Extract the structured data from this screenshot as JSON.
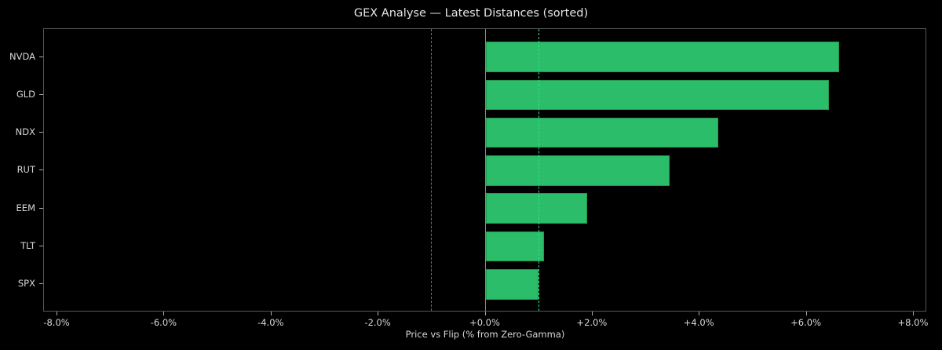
{
  "chart_data": {
    "type": "bar",
    "orientation": "horizontal",
    "title": "GEX Analyse — Latest Distances (sorted)",
    "xlabel": "Price vs Flip (% from Zero-Gamma)",
    "ylabel": "",
    "categories": [
      "NVDA",
      "GLD",
      "NDX",
      "RUT",
      "EEM",
      "TLT",
      "SPX"
    ],
    "values": [
      6.6,
      6.41,
      4.35,
      3.44,
      1.9,
      1.09,
      0.99
    ],
    "units": "%",
    "xlim": [
      -8.25,
      8.25
    ],
    "x_ticks": [
      "-8.0%",
      "-6.0%",
      "-4.0%",
      "-2.0%",
      "+0.0%",
      "+2.0%",
      "+4.0%",
      "+6.0%",
      "+8.0%"
    ],
    "x_tick_values": [
      -8,
      -6,
      -4,
      -2,
      0,
      2,
      4,
      6,
      8
    ],
    "reference_lines": [
      {
        "x": 0.0,
        "style": "solid",
        "color": "#8a8a8a"
      },
      {
        "x": -1.0,
        "style": "dashed",
        "color": "#1f9a5a"
      },
      {
        "x": 1.0,
        "style": "dashed",
        "color": "#33e08a"
      }
    ],
    "grid": false,
    "legend": null,
    "bar_color": "#2bbd69",
    "background": "#000000"
  }
}
